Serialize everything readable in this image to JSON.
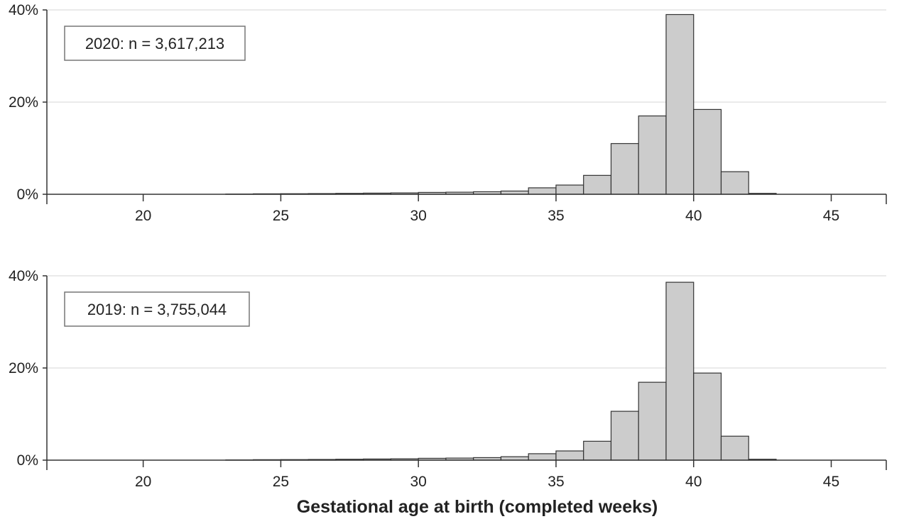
{
  "chart_data": [
    {
      "type": "bar",
      "annotation": "2020: n = 3,617,213",
      "x": [
        17,
        18,
        19,
        20,
        21,
        22,
        23,
        24,
        25,
        26,
        27,
        28,
        29,
        30,
        31,
        32,
        33,
        34,
        35,
        36,
        37,
        38,
        39,
        40,
        41,
        42,
        43,
        44,
        45
      ],
      "values": [
        0,
        0,
        0,
        0,
        0,
        0,
        0.05,
        0.1,
        0.12,
        0.15,
        0.2,
        0.25,
        0.3,
        0.4,
        0.45,
        0.55,
        0.7,
        1.4,
        2.0,
        4.1,
        11.0,
        17.0,
        39.0,
        18.4,
        4.9,
        0.2,
        0,
        0,
        0
      ],
      "xticks": [
        "20",
        "25",
        "30",
        "35",
        "40",
        "45"
      ],
      "yticks": [
        "0%",
        "20%",
        "40%"
      ],
      "xlim": [
        16.5,
        47
      ],
      "ylim": [
        0,
        40
      ],
      "grid": true
    },
    {
      "type": "bar",
      "annotation": "2019: n = 3,755,044",
      "x": [
        17,
        18,
        19,
        20,
        21,
        22,
        23,
        24,
        25,
        26,
        27,
        28,
        29,
        30,
        31,
        32,
        33,
        34,
        35,
        36,
        37,
        38,
        39,
        40,
        41,
        42,
        43,
        44,
        45
      ],
      "values": [
        0,
        0,
        0,
        0,
        0,
        0,
        0.05,
        0.1,
        0.12,
        0.15,
        0.2,
        0.25,
        0.3,
        0.4,
        0.45,
        0.55,
        0.75,
        1.4,
        2.0,
        4.1,
        10.6,
        16.9,
        38.6,
        18.9,
        5.2,
        0.2,
        0,
        0,
        0
      ],
      "xticks": [
        "20",
        "25",
        "30",
        "35",
        "40",
        "45"
      ],
      "yticks": [
        "0%",
        "20%",
        "40%"
      ],
      "xlim": [
        16.5,
        47
      ],
      "ylim": [
        0,
        40
      ],
      "grid": true
    }
  ],
  "xlabel": "Gestational age at birth (completed weeks)",
  "colors": {
    "bar_fill": "#cccccc",
    "bar_stroke": "#333333",
    "grid": "#dddddd",
    "axis": "#333333",
    "text": "#222222"
  }
}
